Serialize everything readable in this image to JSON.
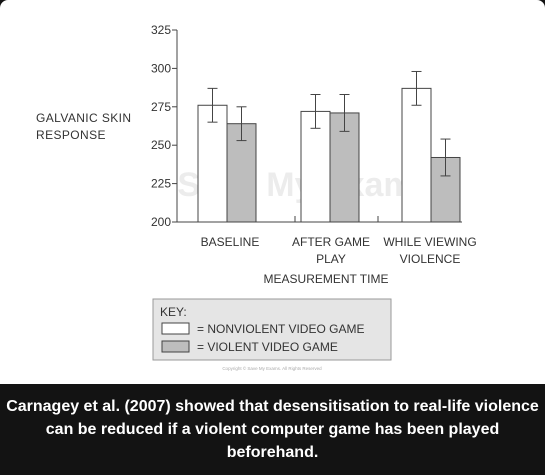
{
  "chart_data": {
    "type": "bar",
    "xlabel": "MEASUREMENT TIME",
    "ylabel_lines": [
      "GALVANIC SKIN",
      "RESPONSE"
    ],
    "ylim": [
      200,
      325
    ],
    "yticks": [
      200,
      225,
      250,
      275,
      300,
      325
    ],
    "categories": [
      [
        "BASELINE"
      ],
      [
        "AFTER GAME",
        "PLAY"
      ],
      [
        "WHILE VIEWING",
        "VIOLENCE"
      ]
    ],
    "series": [
      {
        "name": "NONVIOLENT VIDEO GAME",
        "values": [
          276,
          272,
          287
        ],
        "error": [
          11,
          11,
          11
        ],
        "color": "#ffffff"
      },
      {
        "name": "VIOLENT VIDEO GAME",
        "values": [
          264,
          271,
          242
        ],
        "error": [
          11,
          12,
          12
        ],
        "color": "#bdbdbd"
      }
    ],
    "legend": {
      "title": "KEY:",
      "position": "bottom-left"
    },
    "grid": false
  },
  "copyright": "Copyright © Save My Exams. All Rights Reserved",
  "watermark": "Save My Exams",
  "caption": "Carnagey et al. (2007) showed that desensitisation to real-life violence can be reduced if a violent computer game has been played beforehand."
}
